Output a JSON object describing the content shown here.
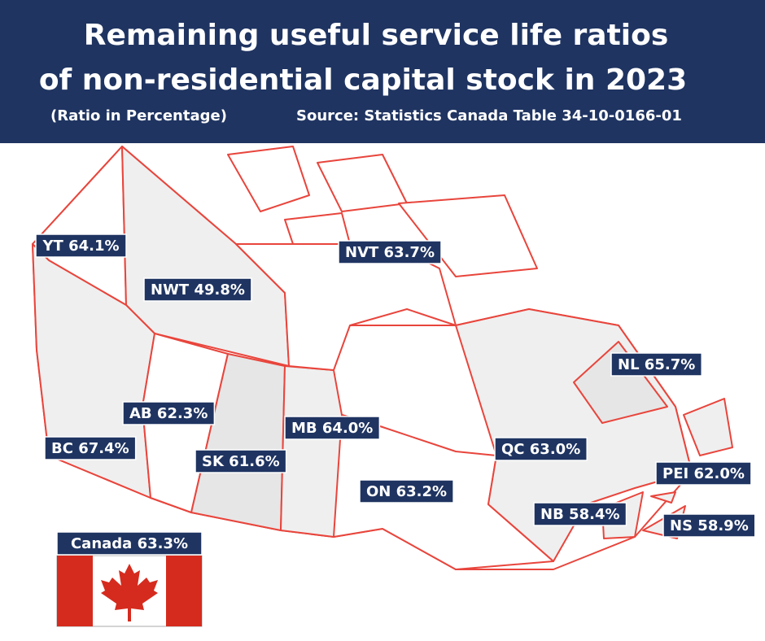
{
  "header": {
    "title_line1": "Remaining useful service life ratios",
    "title_line2": "of non-residential capital stock in 2023",
    "subtitle": "(Ratio in Percentage)",
    "source": "Source: Statistics Canada Table 34-10-0166-01"
  },
  "labels": [
    {
      "text": "YT 64.1%"
    },
    {
      "text": "NVT 63.7%"
    },
    {
      "text": "NWT 49.8%"
    },
    {
      "text": "NL 65.7%"
    },
    {
      "text": "AB 62.3%"
    },
    {
      "text": "MB 64.0%"
    },
    {
      "text": "BC 67.4%"
    },
    {
      "text": "QC 63.0%"
    },
    {
      "text": "SK 61.6%"
    },
    {
      "text": "PEI 62.0%"
    },
    {
      "text": "ON 63.2%"
    },
    {
      "text": "NB 58.4%"
    },
    {
      "text": "NS 58.9%"
    }
  ],
  "national": {
    "text": "Canada 63.3%"
  }
}
